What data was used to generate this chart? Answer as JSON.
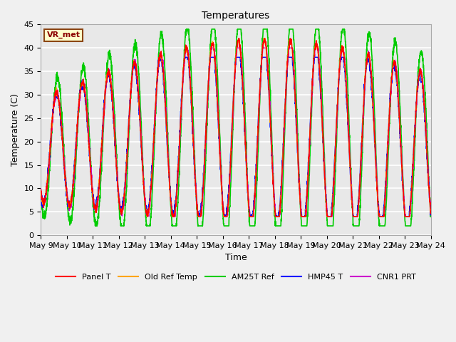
{
  "title": "Temperatures",
  "xlabel": "Time",
  "ylabel": "Temperature (C)",
  "ylim": [
    0,
    45
  ],
  "xlim_days": [
    0,
    15
  ],
  "annotation_text": "VR_met",
  "background_color": "#f0f0f0",
  "plot_bg_color": "#e8e8e8",
  "grid_color": "white",
  "series": {
    "Panel T": {
      "color": "#ff0000",
      "lw": 1.0
    },
    "Old Ref Temp": {
      "color": "#ffa500",
      "lw": 1.0
    },
    "AM25T Ref": {
      "color": "#00cc00",
      "lw": 1.2
    },
    "HMP45 T": {
      "color": "#0000ff",
      "lw": 1.0
    },
    "CNR1 PRT": {
      "color": "#cc00cc",
      "lw": 1.0
    }
  },
  "tick_labels": [
    "May 9",
    "May 10",
    "May 11",
    "May 12",
    "May 13",
    "May 14",
    "May 15",
    "May 16",
    "May 17",
    "May 18",
    "May 19",
    "May 20",
    "May 21",
    "May 22",
    "May 23",
    "May 24"
  ],
  "tick_positions": [
    0,
    1,
    2,
    3,
    4,
    5,
    6,
    7,
    8,
    9,
    10,
    11,
    12,
    13,
    14,
    15
  ],
  "figsize": [
    6.4,
    4.8
  ],
  "dpi": 100
}
